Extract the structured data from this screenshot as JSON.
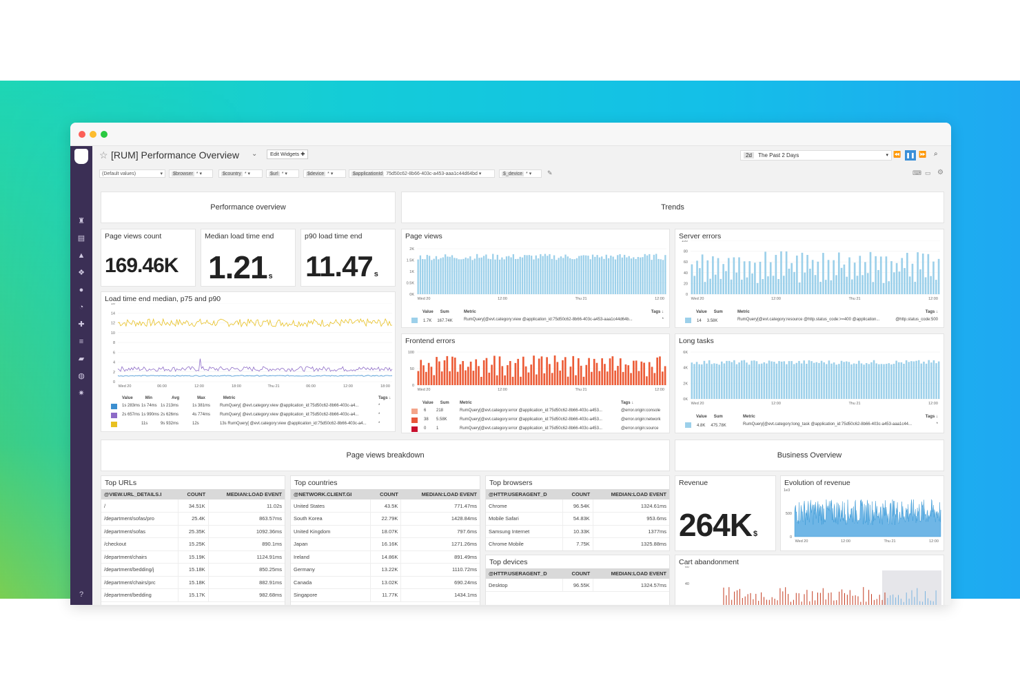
{
  "window": {
    "title": "[RUM] Performance Overview",
    "edit_widgets": "Edit Widgets",
    "time_badge": "2d",
    "time_range": "The Past 2 Days"
  },
  "filters": [
    {
      "key": "",
      "value": "(Default values)"
    },
    {
      "key": "$browser",
      "value": "*"
    },
    {
      "key": "$country",
      "value": "*"
    },
    {
      "key": "$url",
      "value": "*"
    },
    {
      "key": "$device",
      "value": "*"
    },
    {
      "key": "$applicationId",
      "value": "75d50c62-8b66-403c-a453-aaa1c44d64bd"
    },
    {
      "key": "$_device",
      "value": "*"
    }
  ],
  "sections": {
    "perf": "Performance overview",
    "trends": "Trends",
    "breakdown": "Page views breakdown",
    "business": "Business Overview"
  },
  "kpis": [
    {
      "title": "Page views count",
      "value": "169.46K",
      "unit": ""
    },
    {
      "title": "Median load time end",
      "value": "1.21",
      "unit": "s"
    },
    {
      "title": "p90 load time end",
      "value": "11.47",
      "unit": "s"
    }
  ],
  "revenue": {
    "title": "Revenue",
    "value": "264K",
    "unit": "$"
  },
  "panels": {
    "load": "Load time end median, p75 and p90",
    "pageviews": "Page views",
    "server": "Server errors",
    "frontend": "Frontend errors",
    "longtasks": "Long tasks",
    "evo": "Evolution of revenue",
    "cart": "Cart abandonment"
  },
  "legend_heads": {
    "value": "Value",
    "sum": "Sum",
    "min": "Min",
    "avg": "Avg",
    "max": "Max",
    "metric": "Metric",
    "tags": "Tags ↓"
  },
  "load_legend": [
    {
      "color": "#3c8fd0",
      "value": "1s 283ms",
      "min": "1s 74ms",
      "avg": "1s 213ms",
      "max": "1s 381ms",
      "metric": "RumQuery[ @evt.category:view @application_id:75d50c62-8b66-403c-a4...",
      "tags": "*"
    },
    {
      "color": "#8d6bc7",
      "value": "2s 657ms",
      "min": "1s 990ms",
      "avg": "2s 626ms",
      "max": "4s 774ms",
      "metric": "RumQuery[ @evt.category:view @application_id:75d50c62-8b66-403c-a4...",
      "tags": "*"
    },
    {
      "color": "#e8c020",
      "value": "",
      "min": "11s",
      "avg": "9s 932ms",
      "max": "12s",
      "metric": "13s   RumQuery[ @evt.category:view @application_id:75d50c62-8b66-403c-a4...",
      "tags": "*"
    }
  ],
  "pv_legend": {
    "value": "1.7K",
    "sum": "167.74K",
    "metric": "RumQuery[@evt.category:view @application_id:75d50c62-8b66-403c-a453-aaa1c44d64b...",
    "tags": "*"
  },
  "se_legend": {
    "value": "14",
    "sum": "3.58K",
    "metric": "RumQuery[@evt.category:resource @http.status_code:>=400 @application...",
    "tags": "@http.status_code:500"
  },
  "fe_legend": [
    {
      "color": "#f4a58a",
      "value": "6",
      "sum": "218",
      "metric": "RumQuery[@evt.category:error @application_id:75d50c62-8b66-403c-a453...",
      "tags": "@error.origin:console"
    },
    {
      "color": "#e8573a",
      "value": "38",
      "sum": "5.58K",
      "metric": "RumQuery[@evt.category:error @application_id:75d50c62-8b66-403c-a453...",
      "tags": "@error.origin:network"
    },
    {
      "color": "#c8102e",
      "value": "0",
      "sum": "1",
      "metric": "RumQuery[@evt.category:error @application_id:75d50c62-8b66-403c-a453...",
      "tags": "@error.origin:source"
    }
  ],
  "lt_legend": {
    "value": "4.8K",
    "sum": "475.78K",
    "metric": "RumQuery[@evt.category:long_task @application_id:75d50c62-8b66-403c-a453-aaa1c44...",
    "tags": "*"
  },
  "axes": {
    "load_y": [
      "16",
      "14",
      "12",
      "10",
      "8",
      "6",
      "4",
      "2",
      "0"
    ],
    "load_x": [
      "Wed 20",
      "06:00",
      "12:00",
      "18:00",
      "Thu 21",
      "06:00",
      "12:00",
      "18:00"
    ],
    "pv_y": [
      "2K",
      "1.5K",
      "1K",
      "0.5K",
      "0K"
    ],
    "se_y": [
      "100",
      "80",
      "60",
      "40",
      "20",
      "0"
    ],
    "fe_y": [
      "100",
      "50",
      "0"
    ],
    "lt_y": [
      "6K",
      "4K",
      "2K",
      "0K"
    ],
    "evo_y": [
      "1e3",
      "500",
      "0"
    ],
    "cart_y": [
      "60",
      "40"
    ],
    "time_x": [
      "Wed 20",
      "12:00",
      "Thu 21",
      "12:00"
    ]
  },
  "tables": {
    "urls": {
      "title": "Top URLs",
      "cols": [
        "@VIEW.URL_DETAILS.I",
        "COUNT",
        "MEDIAN:LOAD EVENT"
      ],
      "rows": [
        [
          "/",
          "34.51K",
          "11.02s"
        ],
        [
          "/department/sofas/pro",
          "25.4K",
          "863.57ms"
        ],
        [
          "/department/sofas",
          "25.35K",
          "1092.36ms"
        ],
        [
          "/checkout",
          "15.25K",
          "890.1ms"
        ],
        [
          "/department/chairs",
          "15.19K",
          "1124.91ms"
        ],
        [
          "/department/bedding/j",
          "15.18K",
          "850.25ms"
        ],
        [
          "/department/chairs/prc",
          "15.18K",
          "882.91ms"
        ],
        [
          "/department/bedding",
          "15.17K",
          "982.68ms"
        ]
      ]
    },
    "countries": {
      "title": "Top countries",
      "cols": [
        "@NETWORK.CLIENT.GI",
        "COUNT",
        "MEDIAN:LOAD EVENT"
      ],
      "rows": [
        [
          "United States",
          "43.5K",
          "771.47ms"
        ],
        [
          "South Korea",
          "22.79K",
          "1428.84ms"
        ],
        [
          "United Kingdom",
          "18.07K",
          "797.6ms"
        ],
        [
          "Japan",
          "16.16K",
          "1271.26ms"
        ],
        [
          "Ireland",
          "14.86K",
          "891.49ms"
        ],
        [
          "Germany",
          "13.22K",
          "1110.72ms"
        ],
        [
          "Canada",
          "13.02K",
          "690.24ms"
        ],
        [
          "Singapore",
          "11.77K",
          "1434.1ms"
        ]
      ]
    },
    "browsers": {
      "title": "Top browsers",
      "cols": [
        "@HTTP.USERAGENT_D",
        "COUNT",
        "MEDIAN:LOAD EVENT"
      ],
      "rows": [
        [
          "Chrome",
          "96.54K",
          "1324.61ms"
        ],
        [
          "Mobile Safari",
          "54.83K",
          "953.6ms"
        ],
        [
          "Samsung Internet",
          "10.33K",
          "1377ms"
        ],
        [
          "Chrome Mobile",
          "7.75K",
          "1325.88ms"
        ]
      ]
    },
    "devices": {
      "title": "Top devices",
      "cols": [
        "@HTTP.USERAGENT_D",
        "COUNT",
        "MEDIAN:LOAD EVENT"
      ],
      "rows": [
        [
          "Desktop",
          "96.55K",
          "1324.57ms"
        ]
      ]
    }
  },
  "colors": {
    "blue_bar": "#9cd0ea",
    "orange_bar": "#ec5b36",
    "nav": "#3b2f55",
    "revenue_line": "#2a8fd0",
    "cart_red": "#c33a1e"
  }
}
